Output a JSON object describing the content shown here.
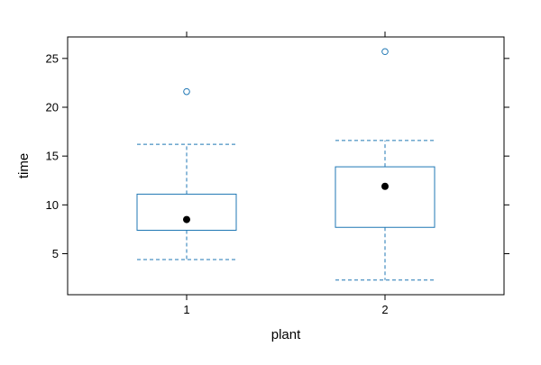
{
  "chart_data": {
    "type": "box",
    "xlabel": "plant",
    "ylabel": "time",
    "ylim": [
      0.8,
      27.2
    ],
    "y_ticks": [
      5,
      10,
      15,
      20,
      25
    ],
    "categories": [
      "1",
      "2"
    ],
    "boxes": [
      {
        "category": "1",
        "whisker_low": 4.4,
        "q1": 7.4,
        "median": 8.5,
        "q3": 11.1,
        "whisker_high": 16.2,
        "outliers": [
          21.6
        ]
      },
      {
        "category": "2",
        "whisker_low": 2.3,
        "q1": 7.7,
        "median": 11.9,
        "q3": 13.9,
        "whisker_high": 16.6,
        "outliers": [
          25.7
        ]
      }
    ],
    "colors": {
      "box": "#1f77b4",
      "median_dot": "#000000",
      "axis": "#000000"
    }
  }
}
